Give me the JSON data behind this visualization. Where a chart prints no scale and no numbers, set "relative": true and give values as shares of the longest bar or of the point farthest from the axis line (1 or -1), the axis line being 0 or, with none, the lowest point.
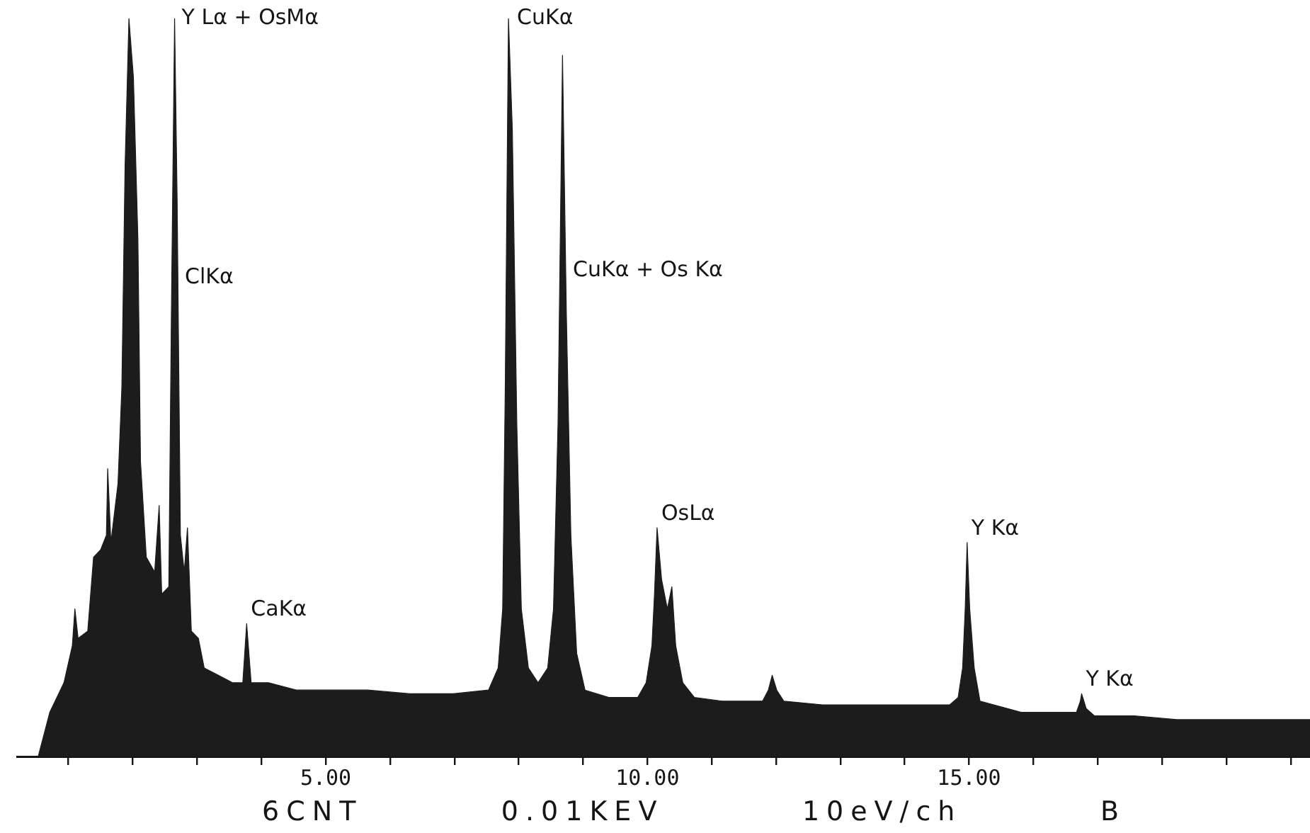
{
  "chart_data": {
    "type": "area",
    "relative": true,
    "color": "#1c1c1c",
    "x": [
      0.53,
      0.71,
      0.93,
      1.06,
      1.1,
      1.15,
      1.3,
      1.39,
      1.5,
      1.59,
      1.61,
      1.66,
      1.77,
      1.83,
      1.88,
      1.94,
      2.01,
      2.08,
      2.12,
      2.21,
      2.34,
      2.41,
      2.45,
      2.56,
      2.6,
      2.65,
      2.69,
      2.74,
      2.8,
      2.85,
      2.91,
      3.02,
      3.11,
      3.33,
      3.55,
      3.71,
      3.77,
      3.84,
      4.11,
      4.55,
      4.99,
      5.65,
      6.31,
      6.98,
      7.53,
      7.68,
      7.75,
      7.79,
      7.84,
      7.9,
      7.97,
      8.04,
      8.15,
      8.3,
      8.45,
      8.54,
      8.61,
      8.68,
      8.74,
      8.81,
      8.9,
      9.03,
      9.4,
      9.85,
      9.98,
      10.07,
      10.11,
      10.15,
      10.22,
      10.31,
      10.38,
      10.44,
      10.55,
      10.73,
      11.17,
      11.79,
      11.88,
      11.94,
      12.01,
      12.12,
      12.72,
      13.38,
      14.04,
      14.7,
      14.83,
      14.9,
      14.94,
      14.97,
      15.01,
      15.08,
      15.17,
      15.81,
      16.47,
      16.67,
      16.73,
      16.75,
      16.82,
      16.95,
      17.57,
      18.23,
      18.9,
      19.56,
      20.3
    ],
    "values": [
      0,
      0.06,
      0.1,
      0.15,
      0.2,
      0.16,
      0.17,
      0.27,
      0.28,
      0.3,
      0.39,
      0.29,
      0.37,
      0.5,
      0.8,
      1,
      0.92,
      0.7,
      0.4,
      0.27,
      0.25,
      0.34,
      0.22,
      0.23,
      0.6,
      1,
      0.75,
      0.3,
      0.25,
      0.31,
      0.17,
      0.16,
      0.12,
      0.11,
      0.1,
      0.1,
      0.18,
      0.1,
      0.1,
      0.09,
      0.09,
      0.09,
      0.085,
      0.085,
      0.09,
      0.12,
      0.2,
      0.5,
      1,
      0.85,
      0.45,
      0.2,
      0.12,
      0.1,
      0.12,
      0.2,
      0.45,
      0.95,
      0.6,
      0.3,
      0.14,
      0.09,
      0.08,
      0.08,
      0.1,
      0.15,
      0.22,
      0.31,
      0.24,
      0.2,
      0.23,
      0.15,
      0.1,
      0.08,
      0.075,
      0.075,
      0.09,
      0.11,
      0.09,
      0.075,
      0.07,
      0.07,
      0.07,
      0.07,
      0.08,
      0.12,
      0.2,
      0.29,
      0.2,
      0.12,
      0.075,
      0.06,
      0.06,
      0.06,
      0.075,
      0.085,
      0.065,
      0.055,
      0.055,
      0.05,
      0.05,
      0.05,
      0.05
    ],
    "xlim": [
      0.2,
      20.3
    ],
    "xticks": [
      {
        "value": 1,
        "label": null
      },
      {
        "value": 2,
        "label": null
      },
      {
        "value": 3,
        "label": null
      },
      {
        "value": 4,
        "label": null
      },
      {
        "value": 5,
        "label": "5.00"
      },
      {
        "value": 6,
        "label": null
      },
      {
        "value": 7,
        "label": null
      },
      {
        "value": 8,
        "label": null
      },
      {
        "value": 9,
        "label": null
      },
      {
        "value": 10,
        "label": "10.00"
      },
      {
        "value": 11,
        "label": null
      },
      {
        "value": 12,
        "label": null
      },
      {
        "value": 13,
        "label": null
      },
      {
        "value": 14,
        "label": null
      },
      {
        "value": 15,
        "label": "15.00"
      },
      {
        "value": 16,
        "label": null
      },
      {
        "value": 17,
        "label": null
      },
      {
        "value": 18,
        "label": null
      },
      {
        "value": 19,
        "label": null
      },
      {
        "value": 20,
        "label": null
      }
    ],
    "annotations": [
      {
        "text": "Y Lα + OsMα",
        "x": 1.94,
        "y": 1
      },
      {
        "text": "ClKα",
        "x": 2.65,
        "y": 0.63
      },
      {
        "text": "CaKα",
        "x": 3.77,
        "y": 0.18
      },
      {
        "text": "CuKα",
        "x": 7.84,
        "y": 1
      },
      {
        "text": "CuKα + Os Kα",
        "x": 8.68,
        "y": 0.64
      },
      {
        "text": "OsLα",
        "x": 10.15,
        "y": 0.31
      },
      {
        "text": "Y Kα",
        "x": 14.97,
        "y": 0.29
      },
      {
        "text": "Y Kα",
        "x": 16.75,
        "y": 0.085
      },
      "6CNT",
      "0.01KEV",
      "10eV/ch",
      "B"
    ]
  }
}
